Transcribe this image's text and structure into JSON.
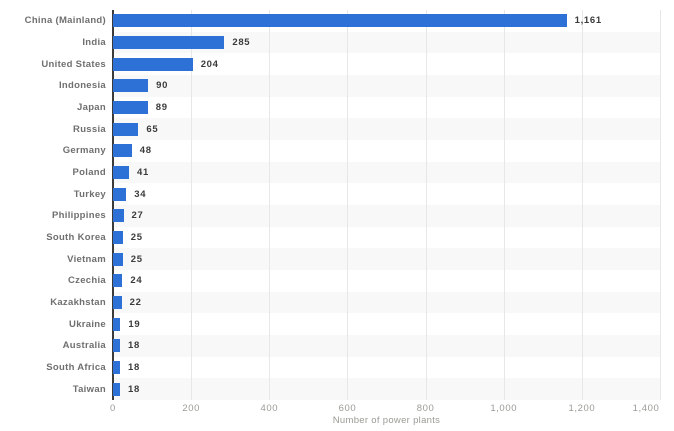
{
  "chart_data": {
    "type": "bar",
    "orientation": "horizontal",
    "title": "",
    "xlabel": "Number of power plants",
    "ylabel": "",
    "xlim": [
      0,
      1400
    ],
    "grid": true,
    "legend": false,
    "categories": [
      "China (Mainland)",
      "India",
      "United States",
      "Indonesia",
      "Japan",
      "Russia",
      "Germany",
      "Poland",
      "Turkey",
      "Philippines",
      "South Korea",
      "Vietnam",
      "Czechia",
      "Kazakhstan",
      "Ukraine",
      "Australia",
      "South Africa",
      "Taiwan"
    ],
    "values": [
      1161,
      285,
      204,
      90,
      89,
      65,
      48,
      41,
      34,
      27,
      25,
      25,
      24,
      22,
      19,
      18,
      18,
      18
    ],
    "value_labels": [
      "1,161",
      "285",
      "204",
      "90",
      "89",
      "65",
      "48",
      "41",
      "34",
      "27",
      "25",
      "25",
      "24",
      "22",
      "19",
      "18",
      "18",
      "18"
    ],
    "x_ticks": [
      0,
      200,
      400,
      600,
      800,
      1000,
      1200,
      1400
    ],
    "x_tick_labels": [
      "0",
      "200",
      "400",
      "600",
      "800",
      "1,000",
      "1,200",
      "1,400"
    ],
    "colors": {
      "bar": "#2e71d6",
      "stripe": "#f8f8f9",
      "gridline": "#e7e7e7",
      "axis_line": "#3b3b3b",
      "category_label": "#6f6f6f",
      "value_label": "#3b3b3b",
      "tick_label": "#9b9b95"
    }
  }
}
